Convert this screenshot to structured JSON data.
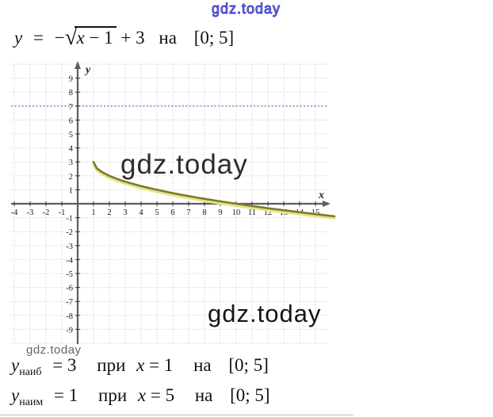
{
  "page": {
    "top_watermark": "gdz.today",
    "below_graph_watermark": "gdz.today"
  },
  "formula": {
    "lhs": "y",
    "equals": "=",
    "minus": "−",
    "rad_var": "x",
    "rad_rest": " − 1",
    "tail": "+ 3",
    "on_word": "на",
    "interval": "[0; 5]"
  },
  "chart_data": {
    "type": "line",
    "title": "",
    "function": "y = −√(x − 1) + 3",
    "x_axis_label": "x",
    "y_axis_label": "y",
    "xlim": [
      -4.2,
      15.9
    ],
    "ylim": [
      -10,
      10
    ],
    "grid": true,
    "x_ticks": [
      -4,
      -3,
      -2,
      -1,
      1,
      2,
      3,
      4,
      5,
      6,
      7,
      8,
      9,
      10,
      11,
      12,
      13,
      14,
      15
    ],
    "y_ticks": [
      9,
      8,
      7,
      6,
      5,
      4,
      3,
      2,
      1,
      -1,
      -2,
      -3,
      -4,
      -5,
      -6,
      -7,
      -8,
      -9
    ],
    "guide_line": {
      "y": 7,
      "color": "#7e7ec8",
      "style": "dotted"
    },
    "curve": {
      "color": "#7b7b2a",
      "glow_color": "#e4e48e",
      "domain": [
        1,
        16.2
      ],
      "points": [
        [
          1,
          3
        ],
        [
          1.2,
          2.553
        ],
        [
          1.5,
          2.293
        ],
        [
          2,
          2
        ],
        [
          2.5,
          1.775
        ],
        [
          3,
          1.586
        ],
        [
          3.5,
          1.419
        ],
        [
          4,
          1.268
        ],
        [
          4.5,
          1.129
        ],
        [
          5,
          1
        ],
        [
          5.5,
          0.879
        ],
        [
          6,
          0.764
        ],
        [
          6.5,
          0.655
        ],
        [
          7,
          0.551
        ],
        [
          7.5,
          0.45
        ],
        [
          8,
          0.354
        ],
        [
          8.5,
          0.261
        ],
        [
          9,
          0.172
        ],
        [
          9.5,
          0.085
        ],
        [
          10,
          0
        ],
        [
          10.5,
          -0.082
        ],
        [
          11,
          -0.162
        ],
        [
          11.5,
          -0.24
        ],
        [
          12,
          -0.317
        ],
        [
          12.5,
          -0.391
        ],
        [
          13,
          -0.464
        ],
        [
          13.5,
          -0.536
        ],
        [
          14,
          -0.606
        ],
        [
          14.5,
          -0.674
        ],
        [
          15,
          -0.742
        ],
        [
          15.5,
          -0.808
        ],
        [
          16,
          -0.873
        ],
        [
          16.2,
          -0.899
        ]
      ],
      "key_points": [
        [
          1,
          3
        ],
        [
          2,
          2
        ],
        [
          5,
          1
        ],
        [
          10,
          0
        ]
      ]
    },
    "watermark_center": "gdz.today",
    "watermark_bottom_right": "gdz.today"
  },
  "results": [
    {
      "y_symbol": "у",
      "subscript": "наиб",
      "value": "= 3",
      "at_word": "при",
      "var": "x",
      "var_value": "= 1",
      "on_word": "на",
      "interval": "[0; 5]"
    },
    {
      "y_symbol": "у",
      "subscript": "наим",
      "value": "= 1",
      "at_word": "при",
      "var": "x",
      "var_value": "= 5",
      "on_word": "на",
      "interval": "[0; 5]"
    }
  ]
}
